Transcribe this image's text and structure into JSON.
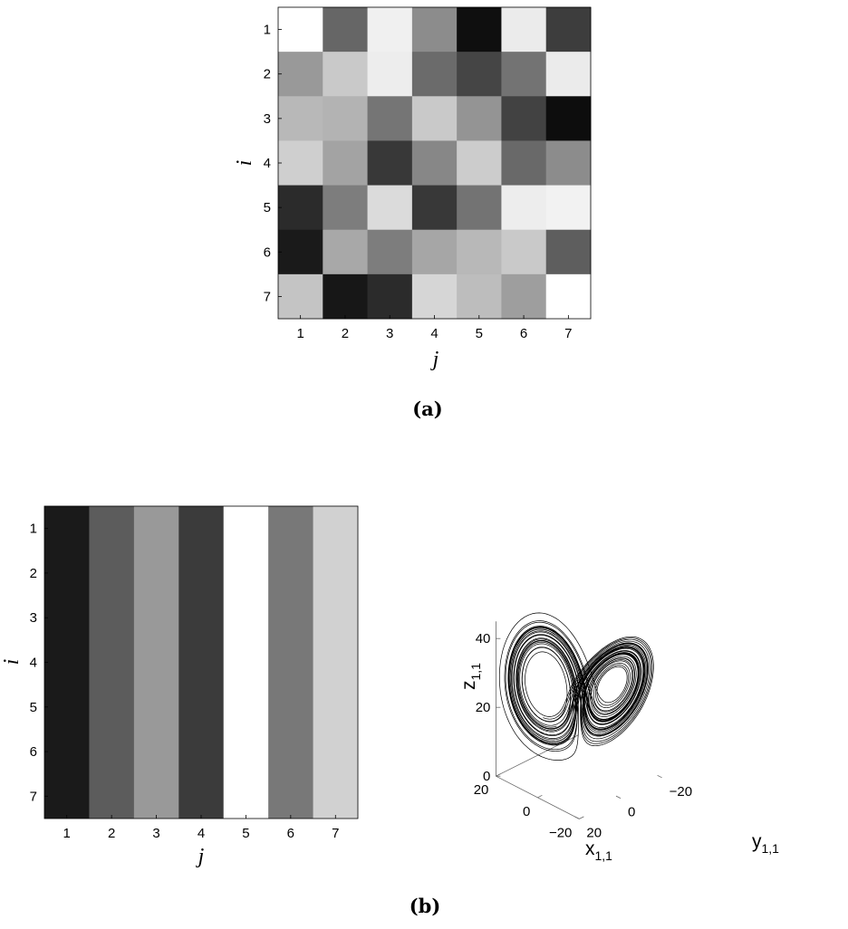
{
  "captions": {
    "a": "(a)",
    "b": "(b)"
  },
  "chart_data": [
    {
      "type": "heatmap",
      "panel": "(a)",
      "xlabel": "j",
      "ylabel": "i",
      "x_ticks": [
        "1",
        "2",
        "3",
        "4",
        "5",
        "6",
        "7"
      ],
      "y_ticks": [
        "1",
        "2",
        "3",
        "4",
        "5",
        "6",
        "7"
      ],
      "colormap": "gray",
      "gray_levels": [
        [
          1.0,
          0.4,
          0.94,
          0.55,
          0.06,
          0.92,
          0.24
        ],
        [
          0.6,
          0.79,
          0.93,
          0.42,
          0.27,
          0.45,
          0.92
        ],
        [
          0.72,
          0.7,
          0.46,
          0.79,
          0.58,
          0.26,
          0.05
        ],
        [
          0.81,
          0.64,
          0.22,
          0.53,
          0.8,
          0.41,
          0.55
        ],
        [
          0.17,
          0.49,
          0.86,
          0.22,
          0.45,
          0.93,
          0.95
        ],
        [
          0.1,
          0.66,
          0.49,
          0.65,
          0.72,
          0.79,
          0.37
        ],
        [
          0.77,
          0.09,
          0.17,
          0.84,
          0.74,
          0.62,
          1.0
        ]
      ]
    },
    {
      "type": "heatmap",
      "panel": "(b) left",
      "xlabel": "j",
      "ylabel": "i",
      "x_ticks": [
        "1",
        "2",
        "3",
        "4",
        "5",
        "6",
        "7"
      ],
      "y_ticks": [
        "1",
        "2",
        "3",
        "4",
        "5",
        "6",
        "7"
      ],
      "colormap": "gray",
      "column_gray_levels": [
        0.1,
        0.36,
        0.6,
        0.23,
        1.0,
        0.47,
        0.82
      ]
    },
    {
      "type": "line",
      "panel": "(b) right",
      "projection": "3d",
      "series_note": "Lorenz-type chaotic attractor trajectory",
      "xlabel": "x",
      "xlabel_sub": "1,1",
      "ylabel": "y",
      "ylabel_sub": "1,1",
      "zlabel": "z",
      "zlabel_sub": "1,1",
      "x_ticks": [
        "20",
        "0",
        "−20"
      ],
      "y_ticks": [
        "20",
        "0",
        "−20"
      ],
      "z_ticks": [
        "0",
        "20",
        "40"
      ],
      "xlim": [
        -20,
        20
      ],
      "ylim": [
        -20,
        20
      ],
      "zlim": [
        0,
        45
      ],
      "attractor": {
        "sigma": 10,
        "rho": 28,
        "beta": 2.6667
      },
      "line_color": "#000000"
    }
  ]
}
